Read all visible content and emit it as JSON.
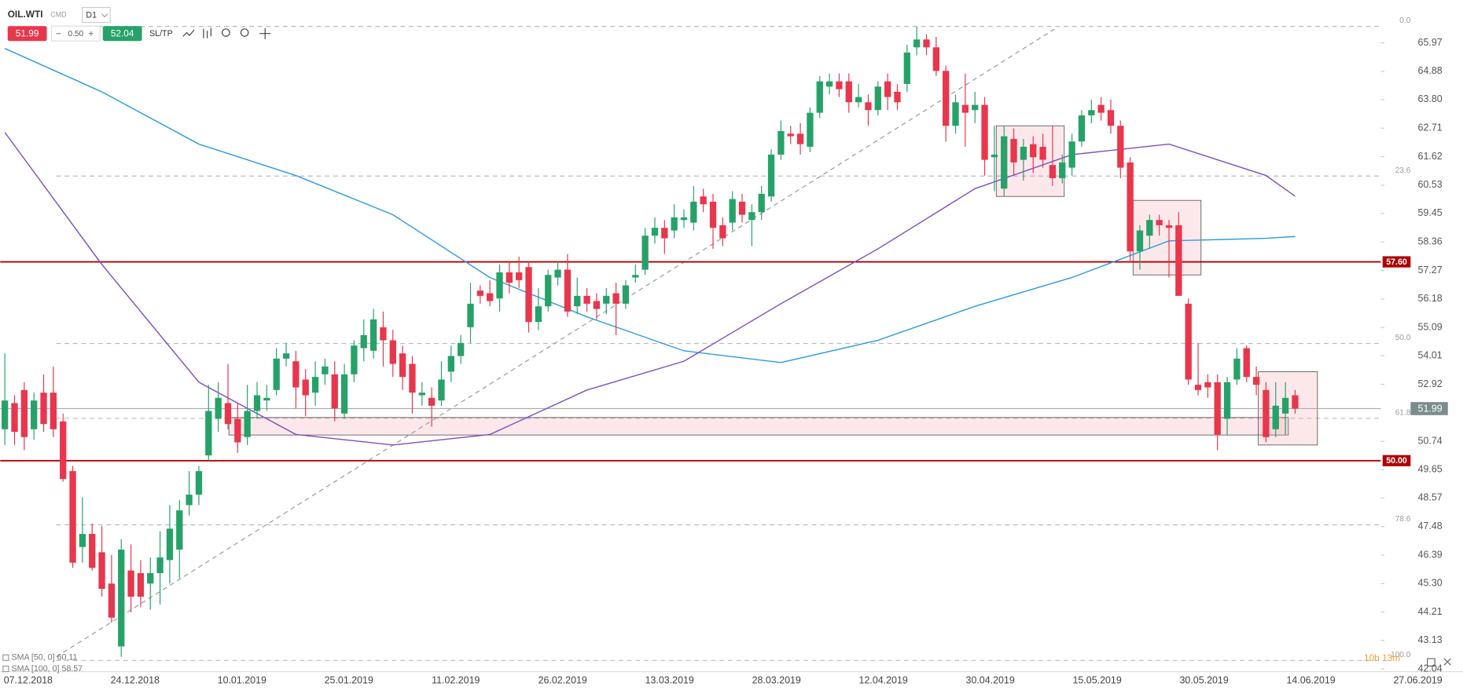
{
  "toolbar": {
    "symbol": "OIL.WTI",
    "market": "CMD",
    "timeframe": "D1",
    "bid": 51.99,
    "volume": "0.50",
    "ask": 52.04,
    "sltp": "SL/TP"
  },
  "countdown": "10h 13m",
  "chart_data": {
    "type": "candlestick",
    "up_color": "#26a269",
    "down_color": "#e8364c",
    "ylim": [
      41.97,
      67.61
    ],
    "yticks": [
      65.97,
      64.88,
      {
        "value": 63.8,
        "label": "63.80"
      },
      62.71,
      61.62,
      60.53,
      59.45,
      58.36,
      57.27,
      56.18,
      55.09,
      54.01,
      52.92,
      50.74,
      49.65,
      48.57,
      47.48,
      46.39,
      {
        "value": 45.3,
        "label": "45.30"
      },
      44.21,
      43.13,
      42.04
    ],
    "xtick_labels": [
      "07.12.2018",
      "24.12.2018",
      "10.01.2019",
      "25.01.2019",
      "11.02.2019",
      "26.02.2019",
      "13.03.2019",
      "28.03.2019",
      "12.04.2019",
      "30.04.2019",
      "15.05.2019",
      "30.05.2019",
      "14.06.2019",
      "27.06.2019"
    ],
    "candles": [
      [
        51.2,
        54.1,
        50.6,
        52.3
      ],
      [
        52.2,
        52.5,
        50.6,
        51.1
      ],
      [
        52.7,
        53.0,
        50.4,
        50.9
      ],
      [
        51.2,
        52.6,
        50.8,
        52.3
      ],
      [
        52.6,
        53.3,
        51.1,
        51.4
      ],
      [
        52.6,
        53.6,
        50.9,
        51.2
      ],
      [
        51.5,
        51.8,
        49.2,
        49.3
      ],
      [
        49.6,
        49.8,
        45.9,
        46.1
      ],
      [
        46.7,
        48.6,
        46.1,
        47.2
      ],
      [
        47.2,
        47.6,
        45.8,
        45.9
      ],
      [
        46.5,
        47.5,
        44.8,
        45.1
      ],
      [
        45.3,
        46.4,
        43.8,
        44.0
      ],
      [
        42.9,
        47.0,
        42.5,
        46.6
      ],
      [
        45.8,
        46.8,
        44.2,
        44.8
      ],
      [
        45.7,
        46.2,
        44.4,
        44.8
      ],
      [
        45.3,
        46.3,
        44.3,
        45.7
      ],
      [
        45.7,
        47.3,
        44.5,
        46.3
      ],
      [
        46.2,
        48.3,
        45.3,
        47.4
      ],
      [
        46.6,
        48.5,
        45.5,
        48.1
      ],
      [
        48.3,
        49.6,
        47.9,
        48.7
      ],
      [
        48.7,
        49.8,
        48.3,
        49.6
      ],
      [
        50.2,
        52.9,
        50.0,
        51.9
      ],
      [
        51.6,
        53.0,
        51.1,
        52.4
      ],
      [
        52.2,
        53.7,
        51.2,
        51.4
      ],
      [
        51.6,
        52.2,
        50.3,
        50.7
      ],
      [
        50.9,
        52.9,
        50.6,
        51.9
      ],
      [
        51.9,
        53.0,
        51.6,
        52.5
      ],
      [
        52.3,
        52.9,
        51.9,
        52.4
      ],
      [
        52.7,
        54.3,
        52.5,
        53.9
      ],
      [
        53.9,
        54.5,
        53.6,
        54.1
      ],
      [
        53.8,
        54.2,
        52.0,
        52.8
      ],
      [
        53.1,
        53.5,
        51.7,
        52.5
      ],
      [
        52.6,
        53.8,
        52.1,
        53.2
      ],
      [
        53.3,
        53.9,
        52.9,
        53.6
      ],
      [
        53.3,
        53.8,
        51.5,
        52.0
      ],
      [
        51.8,
        53.7,
        51.6,
        53.3
      ],
      [
        53.3,
        54.6,
        53.0,
        54.4
      ],
      [
        54.3,
        55.4,
        53.8,
        54.8
      ],
      [
        54.2,
        55.8,
        53.9,
        55.4
      ],
      [
        55.1,
        55.7,
        53.6,
        54.6
      ],
      [
        54.6,
        55.0,
        53.2,
        53.7
      ],
      [
        54.1,
        54.4,
        52.7,
        53.2
      ],
      [
        53.7,
        54.0,
        51.8,
        52.6
      ],
      [
        52.5,
        53.0,
        52.1,
        52.6
      ],
      [
        52.4,
        52.8,
        51.3,
        52.1
      ],
      [
        52.3,
        53.8,
        52.1,
        53.1
      ],
      [
        53.4,
        54.4,
        53.0,
        54.0
      ],
      [
        54.0,
        54.8,
        53.7,
        54.5
      ],
      [
        55.1,
        56.8,
        54.5,
        56.0
      ],
      [
        56.5,
        56.7,
        56.0,
        56.3
      ],
      [
        56.4,
        56.9,
        55.9,
        56.1
      ],
      [
        56.2,
        57.5,
        55.7,
        57.2
      ],
      [
        57.2,
        57.6,
        56.4,
        56.8
      ],
      [
        57.2,
        57.8,
        56.6,
        56.9
      ],
      [
        57.4,
        57.6,
        54.9,
        55.3
      ],
      [
        55.3,
        56.6,
        55.0,
        55.9
      ],
      [
        55.9,
        57.3,
        55.7,
        57.1
      ],
      [
        57.0,
        57.6,
        56.7,
        57.3
      ],
      [
        57.3,
        57.9,
        55.5,
        55.7
      ],
      [
        55.9,
        57.0,
        55.6,
        56.3
      ],
      [
        56.3,
        56.6,
        55.7,
        56.0
      ],
      [
        56.1,
        56.4,
        55.4,
        55.8
      ],
      [
        56.0,
        56.6,
        55.6,
        56.3
      ],
      [
        56.4,
        56.8,
        54.8,
        56.0
      ],
      [
        56.0,
        56.9,
        55.8,
        56.7
      ],
      [
        57.0,
        57.5,
        56.8,
        57.1
      ],
      [
        57.3,
        58.9,
        57.1,
        58.6
      ],
      [
        58.6,
        59.3,
        58.3,
        58.9
      ],
      [
        58.9,
        59.2,
        57.9,
        58.5
      ],
      [
        58.8,
        59.8,
        58.5,
        59.3
      ],
      [
        59.2,
        59.6,
        58.9,
        59.3
      ],
      [
        59.1,
        60.5,
        58.8,
        59.9
      ],
      [
        60.1,
        60.4,
        59.5,
        59.8
      ],
      [
        59.9,
        60.2,
        58.1,
        58.9
      ],
      [
        59.0,
        59.3,
        58.2,
        58.5
      ],
      [
        59.1,
        60.3,
        58.8,
        60.0
      ],
      [
        59.9,
        60.2,
        59.1,
        59.4
      ],
      [
        59.2,
        59.8,
        58.2,
        59.5
      ],
      [
        59.5,
        60.5,
        59.2,
        60.2
      ],
      [
        60.1,
        61.9,
        59.9,
        61.7
      ],
      [
        61.7,
        63.0,
        61.5,
        62.6
      ],
      [
        62.5,
        62.8,
        62.1,
        62.4
      ],
      [
        62.5,
        62.9,
        61.7,
        62.1
      ],
      [
        62.0,
        63.5,
        61.8,
        63.3
      ],
      [
        63.3,
        64.7,
        63.1,
        64.5
      ],
      [
        64.3,
        64.8,
        64.0,
        64.5
      ],
      [
        64.5,
        64.8,
        63.9,
        64.2
      ],
      [
        64.5,
        64.8,
        63.3,
        63.7
      ],
      [
        63.7,
        64.4,
        63.5,
        63.9
      ],
      [
        63.7,
        64.0,
        62.8,
        63.4
      ],
      [
        63.4,
        64.5,
        63.2,
        64.3
      ],
      [
        64.5,
        64.8,
        63.4,
        63.9
      ],
      [
        64.1,
        64.4,
        63.4,
        63.7
      ],
      [
        64.4,
        65.9,
        64.1,
        65.6
      ],
      [
        65.8,
        66.6,
        65.5,
        66.1
      ],
      [
        66.1,
        66.3,
        65.5,
        65.8
      ],
      [
        65.8,
        66.2,
        64.7,
        64.9
      ],
      [
        64.9,
        65.1,
        62.2,
        62.8
      ],
      [
        62.8,
        64.0,
        62.5,
        63.7
      ],
      [
        63.6,
        64.8,
        62.0,
        63.3
      ],
      [
        63.4,
        64.1,
        62.9,
        63.6
      ],
      [
        63.6,
        63.9,
        60.9,
        61.5
      ],
      [
        61.6,
        62.8,
        60.3,
        61.7
      ],
      [
        60.4,
        62.8,
        60.1,
        62.4
      ],
      [
        62.3,
        62.7,
        60.9,
        61.4
      ],
      [
        61.5,
        62.3,
        60.7,
        62.0
      ],
      [
        62.1,
        62.4,
        61.0,
        61.6
      ],
      [
        62.0,
        62.5,
        61.2,
        61.5
      ],
      [
        61.3,
        62.8,
        60.5,
        60.8
      ],
      [
        60.8,
        61.7,
        60.6,
        61.4
      ],
      [
        61.2,
        62.5,
        60.9,
        62.2
      ],
      [
        62.2,
        63.4,
        62.0,
        63.2
      ],
      [
        63.2,
        63.8,
        62.9,
        63.4
      ],
      [
        63.6,
        63.9,
        63.0,
        63.3
      ],
      [
        63.4,
        63.8,
        62.5,
        62.8
      ],
      [
        62.8,
        63.0,
        60.8,
        61.2
      ],
      [
        61.4,
        61.6,
        57.6,
        58.0
      ],
      [
        58.0,
        59.0,
        57.3,
        58.8
      ],
      [
        58.6,
        59.4,
        58.1,
        59.2
      ],
      [
        59.2,
        59.4,
        58.6,
        59.0
      ],
      [
        59.0,
        59.2,
        57.0,
        58.9
      ],
      [
        59.0,
        59.5,
        56.3,
        56.3
      ],
      [
        56.0,
        56.2,
        52.9,
        53.1
      ],
      [
        52.9,
        54.5,
        52.5,
        52.7
      ],
      [
        53.0,
        53.3,
        52.4,
        52.8
      ],
      [
        53.0,
        53.3,
        50.4,
        51.0
      ],
      [
        51.6,
        53.2,
        51.0,
        53.0
      ],
      [
        53.1,
        54.3,
        52.9,
        53.9
      ],
      [
        54.3,
        54.4,
        53.0,
        53.2
      ],
      [
        53.2,
        53.6,
        52.5,
        52.9
      ],
      [
        52.7,
        53.0,
        50.7,
        50.9
      ],
      [
        51.2,
        53.0,
        50.9,
        52.1
      ],
      [
        51.8,
        53.0,
        51.0,
        52.4
      ],
      [
        52.5,
        52.7,
        51.8,
        51.99
      ]
    ],
    "sma": [
      {
        "name": "SMA [100, 0]",
        "color": "#2d9be0",
        "last_value": 58.57,
        "x": [
          0,
          10,
          20,
          30,
          40,
          50,
          60,
          70,
          80,
          90,
          100,
          110,
          120,
          130,
          133
        ],
        "values": [
          65.76,
          64.1,
          62.1,
          60.9,
          59.4,
          57.0,
          55.5,
          54.2,
          53.75,
          54.6,
          55.9,
          57.0,
          58.4,
          58.5,
          58.57
        ]
      },
      {
        "name": "SMA [50, 0]",
        "color": "#7d4fc0",
        "last_value": 60.11,
        "x": [
          0,
          10,
          20,
          30,
          40,
          50,
          60,
          70,
          80,
          90,
          100,
          110,
          120,
          130,
          133
        ],
        "values": [
          62.55,
          57.5,
          53.0,
          51.0,
          50.6,
          51.0,
          52.7,
          53.8,
          56.0,
          58.1,
          60.4,
          61.7,
          62.1,
          60.9,
          60.11
        ]
      }
    ],
    "hlines": [
      {
        "value": 57.6,
        "label": "57.60",
        "color": "#b00000"
      },
      {
        "value": 50,
        "label": "50.00",
        "color": "#b00000"
      }
    ],
    "last_price": {
      "value": 51.99,
      "color": "#7b8c8c"
    },
    "fib": {
      "high": 66.6,
      "low": 42.36,
      "levels": [
        {
          "value": 0,
          "label": "0.0"
        },
        {
          "value": 23.6,
          "label": "23.6"
        },
        {
          "value": 50,
          "label": "50.0"
        },
        {
          "value": 61.8,
          "label": "61.8"
        },
        {
          "value": 78.6,
          "label": "78.6"
        },
        {
          "value": 100,
          "label": "100.0"
        }
      ]
    },
    "trendline": {
      "x": [
        5.3,
        108.2
      ],
      "values": [
        42.5,
        66.5
      ]
    },
    "zones": [
      {
        "x": [
          23.1,
          132.3
        ],
        "values": [
          51.65,
          50.98
        ]
      },
      {
        "x": [
          102.2,
          109.2
        ],
        "values": [
          62.8,
          60.1
        ]
      },
      {
        "x": [
          116.3,
          123.3
        ],
        "values": [
          59.95,
          57.1
        ]
      },
      {
        "x": [
          129.2,
          135.3
        ],
        "values": [
          53.4,
          50.6
        ]
      }
    ]
  }
}
